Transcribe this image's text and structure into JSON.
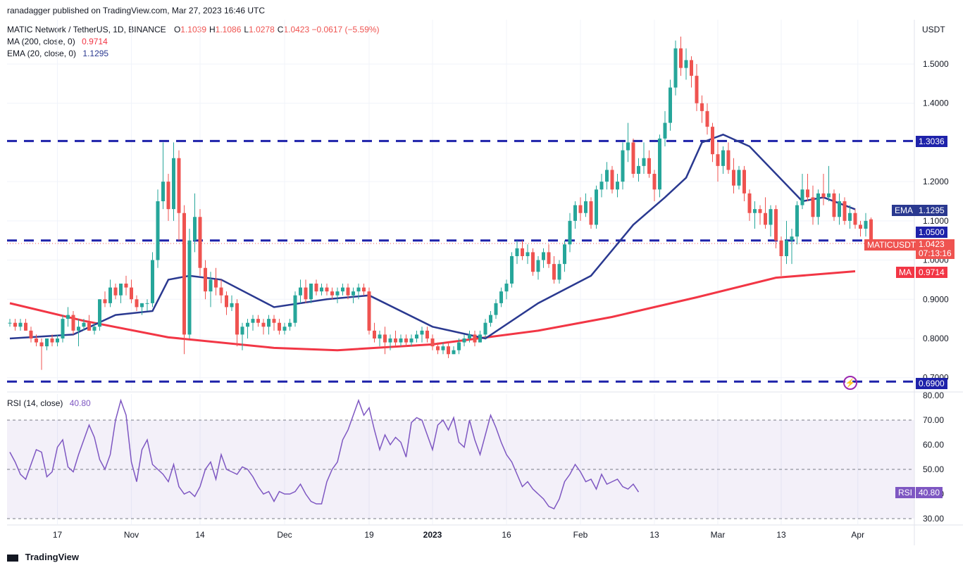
{
  "publisher": "ranadagger published on TradingView.com, Mar 27, 2023 16:46 UTC",
  "legend": {
    "symbol": "MATIC Network / TetherUS, 1D, BINANCE",
    "ohlc": [
      {
        "k": "O",
        "v": "1.1039"
      },
      {
        "k": "H",
        "v": "1.1086"
      },
      {
        "k": "L",
        "v": "1.0278"
      },
      {
        "k": "C",
        "v": "1.0423"
      }
    ],
    "change": "−0.0617 (−5.59%)",
    "ma_label": "MA (200, close, 0)",
    "ma_value": "0.9714",
    "ema_label": "EMA (20, close, 0)",
    "ema_value": "1.1295"
  },
  "price_axis": {
    "currency": "USDT",
    "ticks": [
      "1.5000",
      "1.4000",
      "1.2000",
      "1.1000",
      "1.0000",
      "0.9000",
      "0.8000",
      "0.7000"
    ]
  },
  "badges": {
    "resistance_top": "1.3036",
    "ema_tag": "EMA",
    "ema_value": "1.1295",
    "level_mid": "1.0500",
    "symbol_tag": "MATICUSDT",
    "last_price": "1.0423",
    "countdown": "07:13:16",
    "ma_tag": "MA",
    "ma_value": "0.9714",
    "support": "0.6900"
  },
  "rsi": {
    "label": "RSI (14, close)",
    "value": "40.80",
    "tag": "RSI",
    "ticks": [
      "80.00",
      "70.00",
      "60.00",
      "50.00",
      "40.00",
      "30.00"
    ]
  },
  "time_axis": [
    "17",
    "Nov",
    "14",
    "Dec",
    "19",
    "2023",
    "16",
    "Feb",
    "13",
    "Mar",
    "13",
    "Apr"
  ],
  "footer": "TradingView",
  "colors": {
    "up": "#26a69a",
    "down": "#ef5350",
    "ema": "#2a3990",
    "ma": "#f23645",
    "level": "#1e22aa",
    "rsi": "#7e57c2"
  },
  "chart_data": {
    "type": "candlestick",
    "title": "MATIC Network / TetherUS, 1D, BINANCE",
    "ylabel": "USDT",
    "ylim": [
      0.68,
      1.58
    ],
    "start_date": "2022-10-09",
    "horizontal_levels": [
      1.3036,
      1.05,
      0.69
    ],
    "candles": [
      [
        0.84,
        0.85,
        0.83,
        0.84
      ],
      [
        0.84,
        0.85,
        0.82,
        0.83
      ],
      [
        0.83,
        0.85,
        0.82,
        0.84
      ],
      [
        0.84,
        0.85,
        0.82,
        0.82
      ],
      [
        0.82,
        0.83,
        0.79,
        0.8
      ],
      [
        0.8,
        0.81,
        0.78,
        0.79
      ],
      [
        0.79,
        0.8,
        0.72,
        0.78
      ],
      [
        0.78,
        0.8,
        0.77,
        0.8
      ],
      [
        0.8,
        0.81,
        0.78,
        0.79
      ],
      [
        0.79,
        0.81,
        0.78,
        0.8
      ],
      [
        0.8,
        0.86,
        0.79,
        0.85
      ],
      [
        0.85,
        0.88,
        0.83,
        0.86
      ],
      [
        0.86,
        0.87,
        0.81,
        0.82
      ],
      [
        0.82,
        0.85,
        0.78,
        0.83
      ],
      [
        0.83,
        0.85,
        0.82,
        0.84
      ],
      [
        0.84,
        0.86,
        0.82,
        0.82
      ],
      [
        0.82,
        0.84,
        0.81,
        0.83
      ],
      [
        0.83,
        0.9,
        0.82,
        0.9
      ],
      [
        0.9,
        0.92,
        0.88,
        0.89
      ],
      [
        0.89,
        0.95,
        0.88,
        0.93
      ],
      [
        0.93,
        0.94,
        0.9,
        0.91
      ],
      [
        0.91,
        0.94,
        0.89,
        0.94
      ],
      [
        0.94,
        0.96,
        0.91,
        0.93
      ],
      [
        0.93,
        0.95,
        0.89,
        0.9
      ],
      [
        0.9,
        0.91,
        0.87,
        0.88
      ],
      [
        0.88,
        0.89,
        0.86,
        0.89
      ],
      [
        0.89,
        0.9,
        0.87,
        0.89
      ],
      [
        0.89,
        1.02,
        0.88,
        1.0
      ],
      [
        1.0,
        1.18,
        0.98,
        1.15
      ],
      [
        1.15,
        1.3,
        1.13,
        1.2
      ],
      [
        1.2,
        1.22,
        1.1,
        1.13
      ],
      [
        1.13,
        1.3,
        1.1,
        1.26
      ],
      [
        1.26,
        1.28,
        1.05,
        1.12
      ],
      [
        1.12,
        1.14,
        0.76,
        0.81
      ],
      [
        0.81,
        1.08,
        0.8,
        1.05
      ],
      [
        1.05,
        1.17,
        1.02,
        1.11
      ],
      [
        1.11,
        1.13,
        0.96,
        0.98
      ],
      [
        0.98,
        1.0,
        0.9,
        0.92
      ],
      [
        0.92,
        0.97,
        0.88,
        0.95
      ],
      [
        0.95,
        0.98,
        0.91,
        0.93
      ],
      [
        0.93,
        0.95,
        0.89,
        0.91
      ],
      [
        0.91,
        0.92,
        0.86,
        0.88
      ],
      [
        0.88,
        0.91,
        0.87,
        0.89
      ],
      [
        0.89,
        0.9,
        0.78,
        0.81
      ],
      [
        0.81,
        0.84,
        0.77,
        0.83
      ],
      [
        0.83,
        0.85,
        0.8,
        0.84
      ],
      [
        0.84,
        0.86,
        0.82,
        0.85
      ],
      [
        0.85,
        0.86,
        0.83,
        0.84
      ],
      [
        0.84,
        0.85,
        0.81,
        0.83
      ],
      [
        0.83,
        0.86,
        0.81,
        0.85
      ],
      [
        0.85,
        0.86,
        0.82,
        0.84
      ],
      [
        0.84,
        0.85,
        0.81,
        0.82
      ],
      [
        0.82,
        0.84,
        0.81,
        0.83
      ],
      [
        0.83,
        0.85,
        0.82,
        0.84
      ],
      [
        0.84,
        0.92,
        0.83,
        0.91
      ],
      [
        0.91,
        0.95,
        0.89,
        0.93
      ],
      [
        0.93,
        0.95,
        0.89,
        0.9
      ],
      [
        0.9,
        0.94,
        0.89,
        0.94
      ],
      [
        0.94,
        0.95,
        0.91,
        0.92
      ],
      [
        0.92,
        0.94,
        0.91,
        0.93
      ],
      [
        0.93,
        0.94,
        0.91,
        0.92
      ],
      [
        0.92,
        0.93,
        0.9,
        0.91
      ],
      [
        0.91,
        0.93,
        0.89,
        0.92
      ],
      [
        0.92,
        0.94,
        0.91,
        0.93
      ],
      [
        0.93,
        0.94,
        0.9,
        0.91
      ],
      [
        0.91,
        0.93,
        0.89,
        0.92
      ],
      [
        0.92,
        0.94,
        0.9,
        0.93
      ],
      [
        0.93,
        0.94,
        0.91,
        0.92
      ],
      [
        0.92,
        0.93,
        0.81,
        0.82
      ],
      [
        0.82,
        0.84,
        0.79,
        0.8
      ],
      [
        0.8,
        0.82,
        0.78,
        0.81
      ],
      [
        0.81,
        0.83,
        0.76,
        0.79
      ],
      [
        0.79,
        0.81,
        0.77,
        0.8
      ],
      [
        0.8,
        0.82,
        0.78,
        0.79
      ],
      [
        0.79,
        0.81,
        0.78,
        0.8
      ],
      [
        0.8,
        0.81,
        0.78,
        0.79
      ],
      [
        0.79,
        0.81,
        0.78,
        0.8
      ],
      [
        0.8,
        0.82,
        0.79,
        0.81
      ],
      [
        0.81,
        0.83,
        0.79,
        0.82
      ],
      [
        0.82,
        0.83,
        0.79,
        0.8
      ],
      [
        0.8,
        0.81,
        0.77,
        0.78
      ],
      [
        0.78,
        0.79,
        0.76,
        0.77
      ],
      [
        0.77,
        0.79,
        0.76,
        0.78
      ],
      [
        0.78,
        0.79,
        0.75,
        0.76
      ],
      [
        0.76,
        0.78,
        0.76,
        0.77
      ],
      [
        0.77,
        0.8,
        0.76,
        0.79
      ],
      [
        0.79,
        0.81,
        0.78,
        0.8
      ],
      [
        0.8,
        0.82,
        0.79,
        0.81
      ],
      [
        0.81,
        0.82,
        0.78,
        0.79
      ],
      [
        0.79,
        0.82,
        0.79,
        0.81
      ],
      [
        0.81,
        0.85,
        0.8,
        0.84
      ],
      [
        0.84,
        0.87,
        0.83,
        0.86
      ],
      [
        0.86,
        0.9,
        0.85,
        0.89
      ],
      [
        0.89,
        0.93,
        0.88,
        0.92
      ],
      [
        0.92,
        0.95,
        0.9,
        0.94
      ],
      [
        0.94,
        1.02,
        0.93,
        1.01
      ],
      [
        1.01,
        1.05,
        0.99,
        1.03
      ],
      [
        1.03,
        1.05,
        1.0,
        1.01
      ],
      [
        1.01,
        1.04,
        0.99,
        1.02
      ],
      [
        1.02,
        1.03,
        0.96,
        0.97
      ],
      [
        0.97,
        1.01,
        0.95,
        1.0
      ],
      [
        1.0,
        1.03,
        0.98,
        1.02
      ],
      [
        1.02,
        1.04,
        0.98,
        0.99
      ],
      [
        0.99,
        1.01,
        0.94,
        0.95
      ],
      [
        0.95,
        1.0,
        0.94,
        0.99
      ],
      [
        0.99,
        1.05,
        0.97,
        1.04
      ],
      [
        1.04,
        1.12,
        1.02,
        1.1
      ],
      [
        1.1,
        1.15,
        1.08,
        1.14
      ],
      [
        1.14,
        1.16,
        1.1,
        1.12
      ],
      [
        1.12,
        1.17,
        1.11,
        1.15
      ],
      [
        1.15,
        1.16,
        1.08,
        1.09
      ],
      [
        1.09,
        1.19,
        1.08,
        1.18
      ],
      [
        1.18,
        1.22,
        1.16,
        1.2
      ],
      [
        1.2,
        1.25,
        1.18,
        1.23
      ],
      [
        1.23,
        1.24,
        1.17,
        1.18
      ],
      [
        1.18,
        1.22,
        1.16,
        1.2
      ],
      [
        1.2,
        1.3,
        1.18,
        1.28
      ],
      [
        1.28,
        1.35,
        1.25,
        1.3
      ],
      [
        1.3,
        1.31,
        1.21,
        1.22
      ],
      [
        1.22,
        1.26,
        1.2,
        1.24
      ],
      [
        1.24,
        1.3,
        1.22,
        1.26
      ],
      [
        1.26,
        1.28,
        1.21,
        1.22
      ],
      [
        1.22,
        1.23,
        1.15,
        1.18
      ],
      [
        1.18,
        1.32,
        1.16,
        1.31
      ],
      [
        1.31,
        1.38,
        1.29,
        1.35
      ],
      [
        1.35,
        1.46,
        1.33,
        1.44
      ],
      [
        1.44,
        1.56,
        1.42,
        1.54
      ],
      [
        1.54,
        1.57,
        1.47,
        1.49
      ],
      [
        1.49,
        1.54,
        1.46,
        1.51
      ],
      [
        1.51,
        1.52,
        1.44,
        1.47
      ],
      [
        1.47,
        1.5,
        1.38,
        1.4
      ],
      [
        1.4,
        1.42,
        1.35,
        1.38
      ],
      [
        1.38,
        1.4,
        1.32,
        1.34
      ],
      [
        1.34,
        1.35,
        1.25,
        1.27
      ],
      [
        1.27,
        1.3,
        1.2,
        1.24
      ],
      [
        1.24,
        1.29,
        1.22,
        1.28
      ],
      [
        1.28,
        1.3,
        1.22,
        1.23
      ],
      [
        1.23,
        1.26,
        1.17,
        1.19
      ],
      [
        1.19,
        1.24,
        1.18,
        1.23
      ],
      [
        1.23,
        1.24,
        1.15,
        1.17
      ],
      [
        1.17,
        1.18,
        1.1,
        1.12
      ],
      [
        1.12,
        1.15,
        1.08,
        1.13
      ],
      [
        1.13,
        1.14,
        1.09,
        1.12
      ],
      [
        1.12,
        1.16,
        1.08,
        1.09
      ],
      [
        1.09,
        1.14,
        1.06,
        1.13
      ],
      [
        1.13,
        1.14,
        1.03,
        1.05
      ],
      [
        1.05,
        1.06,
        0.96,
        1.01
      ],
      [
        1.01,
        1.1,
        0.99,
        1.05
      ],
      [
        1.05,
        1.08,
        0.99,
        1.06
      ],
      [
        1.06,
        1.15,
        1.04,
        1.14
      ],
      [
        1.14,
        1.22,
        1.13,
        1.18
      ],
      [
        1.18,
        1.22,
        1.15,
        1.16
      ],
      [
        1.16,
        1.19,
        1.09,
        1.11
      ],
      [
        1.11,
        1.18,
        1.09,
        1.17
      ],
      [
        1.17,
        1.22,
        1.14,
        1.16
      ],
      [
        1.16,
        1.24,
        1.15,
        1.17
      ],
      [
        1.17,
        1.18,
        1.1,
        1.11
      ],
      [
        1.11,
        1.17,
        1.09,
        1.15
      ],
      [
        1.15,
        1.16,
        1.09,
        1.1
      ],
      [
        1.1,
        1.14,
        1.08,
        1.12
      ],
      [
        1.12,
        1.13,
        1.08,
        1.09
      ],
      [
        1.09,
        1.1,
        1.06,
        1.08
      ],
      [
        1.08,
        1.12,
        1.06,
        1.1
      ],
      [
        1.1039,
        1.1086,
        1.0278,
        1.0423
      ]
    ],
    "ma200": [
      [
        0,
        0.89
      ],
      [
        14,
        0.845
      ],
      [
        30,
        0.803
      ],
      [
        50,
        0.776
      ],
      [
        62,
        0.77
      ],
      [
        80,
        0.785
      ],
      [
        100,
        0.82
      ],
      [
        114,
        0.855
      ],
      [
        130,
        0.905
      ],
      [
        145,
        0.955
      ],
      [
        160,
        0.9714
      ]
    ],
    "ema20": [
      [
        0,
        0.8
      ],
      [
        12,
        0.81
      ],
      [
        20,
        0.86
      ],
      [
        27,
        0.87
      ],
      [
        30,
        0.95
      ],
      [
        34,
        0.96
      ],
      [
        40,
        0.95
      ],
      [
        50,
        0.88
      ],
      [
        60,
        0.9
      ],
      [
        68,
        0.91
      ],
      [
        80,
        0.83
      ],
      [
        90,
        0.8
      ],
      [
        100,
        0.89
      ],
      [
        110,
        0.96
      ],
      [
        118,
        1.09
      ],
      [
        124,
        1.16
      ],
      [
        128,
        1.21
      ],
      [
        131,
        1.3
      ],
      [
        135,
        1.32
      ],
      [
        140,
        1.29
      ],
      [
        145,
        1.22
      ],
      [
        150,
        1.15
      ],
      [
        154,
        1.16
      ],
      [
        160,
        1.1295
      ]
    ],
    "rsi_ylim": [
      27,
      82
    ],
    "rsi": [
      57,
      53,
      48,
      46,
      52,
      58,
      57,
      47,
      49,
      59,
      62,
      51,
      49,
      56,
      62,
      68,
      63,
      54,
      50,
      56,
      70,
      78,
      72,
      53,
      45,
      58,
      62,
      52,
      50,
      48,
      45,
      52,
      43,
      40,
      41,
      39,
      43,
      50,
      53,
      46,
      56,
      50,
      49,
      48,
      51,
      50,
      47,
      43,
      40,
      41,
      37,
      41,
      40,
      40,
      41,
      44,
      40,
      37,
      36,
      36,
      45,
      50,
      53,
      62,
      66,
      72,
      78,
      72,
      75,
      66,
      58,
      64,
      60,
      63,
      61,
      55,
      69,
      71,
      70,
      64,
      58,
      68,
      70,
      66,
      71,
      61,
      59,
      70,
      62,
      56,
      64,
      72,
      67,
      61,
      56,
      53,
      48,
      43,
      45,
      42,
      40,
      38,
      35,
      34,
      38,
      45,
      48,
      52,
      49,
      45,
      46,
      42,
      48,
      44,
      45,
      46,
      43,
      42,
      44,
      40.8
    ],
    "rsi_levels": [
      70,
      50,
      30
    ]
  }
}
